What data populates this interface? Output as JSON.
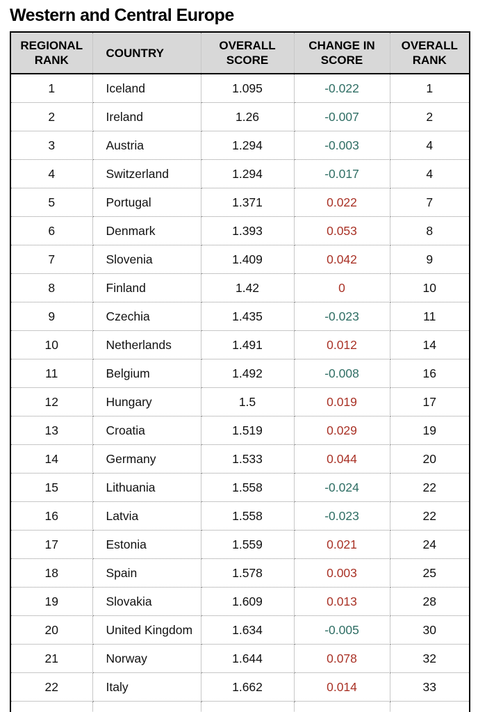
{
  "page": {
    "title": "Western and Central Europe"
  },
  "colors": {
    "decrease_text": "#2f6e64",
    "increase_text": "#a93226",
    "header_bg": "#d8d8d8",
    "outer_border": "#000000",
    "grid_dotted": "#8f8f8f",
    "body_text": "#111111"
  },
  "chart_data": {
    "type": "table",
    "title": "Western and Central Europe",
    "columns": [
      "REGIONAL RANK",
      "COUNTRY",
      "OVERALL SCORE",
      "CHANGE IN SCORE",
      "OVERALL RANK"
    ],
    "rows": [
      [
        "1",
        "Iceland",
        "1.095",
        "-0.022",
        "1"
      ],
      [
        "2",
        "Ireland",
        "1.26",
        "-0.007",
        "2"
      ],
      [
        "3",
        "Austria",
        "1.294",
        "-0.003",
        "4"
      ],
      [
        "4",
        "Switzerland",
        "1.294",
        "-0.017",
        "4"
      ],
      [
        "5",
        "Portugal",
        "1.371",
        "0.022",
        "7"
      ],
      [
        "6",
        "Denmark",
        "1.393",
        "0.053",
        "8"
      ],
      [
        "7",
        "Slovenia",
        "1.409",
        "0.042",
        "9"
      ],
      [
        "8",
        "Finland",
        "1.42",
        "0",
        "10"
      ],
      [
        "9",
        "Czechia",
        "1.435",
        "-0.023",
        "11"
      ],
      [
        "10",
        "Netherlands",
        "1.491",
        "0.012",
        "14"
      ],
      [
        "11",
        "Belgium",
        "1.492",
        "-0.008",
        "16"
      ],
      [
        "12",
        "Hungary",
        "1.5",
        "0.019",
        "17"
      ],
      [
        "13",
        "Croatia",
        "1.519",
        "0.029",
        "19"
      ],
      [
        "14",
        "Germany",
        "1.533",
        "0.044",
        "20"
      ],
      [
        "15",
        "Lithuania",
        "1.558",
        "-0.024",
        "22"
      ],
      [
        "16",
        "Latvia",
        "1.558",
        "-0.023",
        "22"
      ],
      [
        "17",
        "Estonia",
        "1.559",
        "0.021",
        "24"
      ],
      [
        "18",
        "Spain",
        "1.578",
        "0.003",
        "25"
      ],
      [
        "19",
        "Slovakia",
        "1.609",
        "0.013",
        "28"
      ],
      [
        "20",
        "United Kingdom",
        "1.634",
        "-0.005",
        "30"
      ],
      [
        "21",
        "Norway",
        "1.644",
        "0.078",
        "32"
      ],
      [
        "22",
        "Italy",
        "1.662",
        "0.014",
        "33"
      ]
    ],
    "notes": {
      "change_color_rule": "negative change rendered teal, zero or positive change rendered red",
      "bottom_row_partially_cropped": true
    }
  }
}
